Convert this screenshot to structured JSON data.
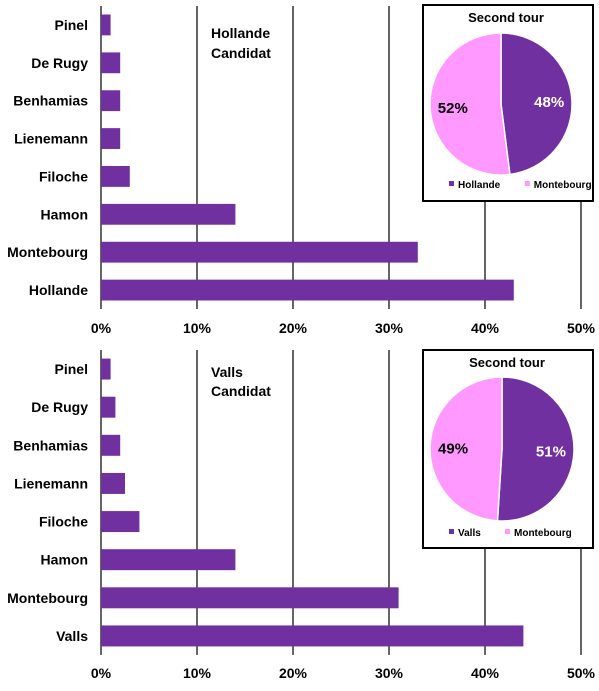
{
  "colors": {
    "bar": "#7030a0",
    "pie_a": "#7030a0",
    "pie_b": "#ff99ff",
    "axis": "#000000",
    "grid": "#000000"
  },
  "chart_data": [
    {
      "type": "bar",
      "orientation": "horizontal",
      "annotation": [
        "Hollande",
        "Candidat"
      ],
      "categories": [
        "Pinel",
        "De Rugy",
        "Benhamias",
        "Lienemann",
        "Filoche",
        "Hamon",
        "Montebourg",
        "Hollande"
      ],
      "values": [
        1,
        2,
        2,
        2,
        3,
        14,
        33,
        43
      ],
      "unit": "%",
      "xlim": [
        0,
        50
      ],
      "xticks": [
        "0%",
        "10%",
        "20%",
        "30%",
        "40%",
        "50%"
      ],
      "grid": "vertical",
      "inset": {
        "type": "pie",
        "title": "Second tour",
        "labels": [
          "Hollande",
          "Montebourg"
        ],
        "values": [
          48,
          52
        ],
        "value_labels": [
          "48%",
          "52%"
        ],
        "legend": "bottom"
      }
    },
    {
      "type": "bar",
      "orientation": "horizontal",
      "annotation": [
        "Valls",
        "Candidat"
      ],
      "categories": [
        "Pinel",
        "De Rugy",
        "Benhamias",
        "Lienemann",
        "Filoche",
        "Hamon",
        "Montebourg",
        "Valls"
      ],
      "values": [
        1,
        1.5,
        2,
        2.5,
        4,
        14,
        31,
        44
      ],
      "unit": "%",
      "xlim": [
        0,
        50
      ],
      "xticks": [
        "0%",
        "10%",
        "20%",
        "30%",
        "40%",
        "50%"
      ],
      "grid": "vertical",
      "inset": {
        "type": "pie",
        "title": "Second tour",
        "labels": [
          "Valls",
          "Montebourg"
        ],
        "values": [
          51,
          49
        ],
        "value_labels": [
          "51%",
          "49%"
        ],
        "legend": "bottom"
      }
    }
  ]
}
